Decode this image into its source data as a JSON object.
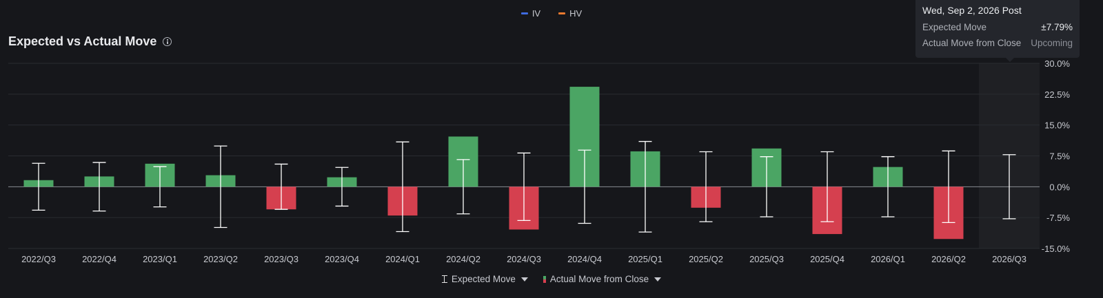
{
  "top_legend": [
    {
      "label": "IV",
      "color": "#3f6be0"
    },
    {
      "label": "HV",
      "color": "#ee7a2f"
    }
  ],
  "title": "Expected vs Actual Move",
  "tooltip": {
    "header": "Wed, Sep 2, 2026 Post",
    "rows": [
      {
        "label": "Expected Move",
        "value": "±7.79%"
      },
      {
        "label": "Actual Move from Close",
        "value": "Upcoming"
      }
    ]
  },
  "bottom_legend": {
    "expected_move": "Expected Move",
    "actual_move": "Actual Move from Close"
  },
  "colors": {
    "positive": "#4ba564",
    "negative": "#d5404f",
    "whisker": "#ffffff",
    "grid": "#2a2c31",
    "zero_line": "#8a8d93",
    "axis_text": "#c8cad0",
    "highlight": "#1f2024"
  },
  "chart_data": {
    "type": "bar",
    "title": "Expected vs Actual Move",
    "categories": [
      "2022/Q3",
      "2022/Q4",
      "2023/Q1",
      "2023/Q2",
      "2023/Q3",
      "2023/Q4",
      "2024/Q1",
      "2024/Q2",
      "2024/Q3",
      "2024/Q4",
      "2025/Q1",
      "2025/Q2",
      "2025/Q3",
      "2025/Q4",
      "2026/Q1",
      "2026/Q2",
      "2026/Q3"
    ],
    "series": [
      {
        "name": "Actual Move from Close",
        "values": [
          1.6,
          2.5,
          5.6,
          2.8,
          -5.5,
          2.3,
          -7.0,
          12.2,
          -10.4,
          24.3,
          8.6,
          -5.1,
          9.3,
          -11.5,
          4.8,
          -12.7,
          null
        ]
      },
      {
        "name": "Expected Move",
        "values": [
          5.7,
          5.9,
          4.9,
          9.9,
          5.5,
          4.7,
          10.9,
          6.6,
          8.2,
          8.9,
          11.0,
          8.5,
          7.3,
          8.5,
          7.3,
          8.7,
          7.79
        ]
      }
    ],
    "y_ticks": [
      "30.0%",
      "22.5%",
      "15.0%",
      "7.5%",
      "0.0%",
      "-7.5%",
      "-15.0%"
    ],
    "ylim": [
      -15,
      30
    ],
    "y_axis_position": "right",
    "grid": true,
    "highlighted_category": "2026/Q3"
  }
}
